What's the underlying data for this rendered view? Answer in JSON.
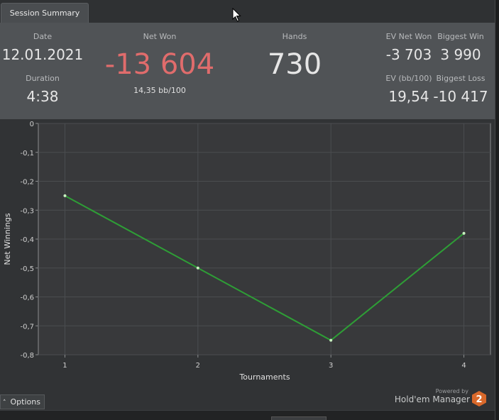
{
  "tab": {
    "label": "Session Summary"
  },
  "summary": {
    "date_label": "Date",
    "date_value": "12.01.2021",
    "duration_label": "Duration",
    "duration_value": "4:38",
    "net_won_label": "Net Won",
    "net_won_value": "-13 604",
    "net_won_sub": "14,35 bb/100",
    "hands_label": "Hands",
    "hands_value": "730",
    "ev_net_won_label": "EV Net Won",
    "ev_net_won_value": "-3 703",
    "biggest_win_label": "Biggest Win",
    "biggest_win_value": "3 990",
    "ev_bb_label": "EV (bb/100)",
    "ev_bb_value": "19,54",
    "biggest_loss_label": "Biggest Loss",
    "biggest_loss_value": "-10 417"
  },
  "colors": {
    "net_won": "#e06c6c",
    "line": "#2e9e36",
    "point": "#c8f0c0"
  },
  "chart_data": {
    "type": "line",
    "xlabel": "Tournaments",
    "ylabel": "Net Winnings",
    "x": [
      1,
      2,
      3,
      4
    ],
    "series": [
      {
        "values": [
          -0.25,
          -0.5,
          -0.75,
          -0.38
        ]
      }
    ],
    "xlim": [
      0.8,
      4.2
    ],
    "ylim": [
      -0.8,
      0
    ],
    "xticks": [
      "1",
      "2",
      "3",
      "4"
    ],
    "yticks": [
      "0",
      "-0,1",
      "-0,2",
      "-0,3",
      "-0,4",
      "-0,5",
      "-0,6",
      "-0,7",
      "-0,8"
    ],
    "grid": true
  },
  "options": {
    "label": "Options"
  },
  "branding": {
    "powered_by": "Powered by",
    "product": "Hold'em Manager",
    "badge": "2"
  }
}
